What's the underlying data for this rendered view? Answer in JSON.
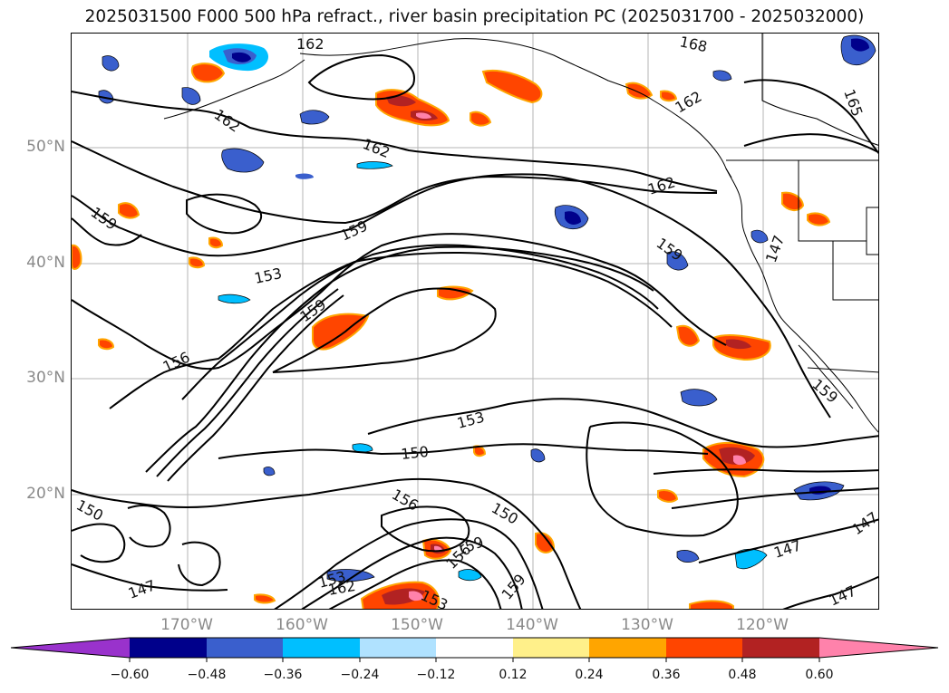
{
  "title": "2025031500 F000 500 hPa refract., river basin precipitation PC (2025031700 - 2025032000)",
  "lat_labels": [
    "50°N",
    "40°N",
    "30°N",
    "20°N"
  ],
  "lon_labels": [
    "170°W",
    "160°W",
    "150°W",
    "140°W",
    "130°W",
    "120°W"
  ],
  "contour_labels": [
    "162",
    "168",
    "165",
    "162",
    "162",
    "162",
    "159",
    "159",
    "159",
    "162",
    "153",
    "159",
    "156",
    "153",
    "150",
    "150",
    "156",
    "150",
    "159",
    "156",
    "153",
    "162",
    "153",
    "159",
    "147",
    "147",
    "159",
    "147",
    "147",
    "147"
  ],
  "colorbar": {
    "tick_labels": [
      "−0.60",
      "−0.48",
      "−0.36",
      "−0.24",
      "−0.12",
      "0.12",
      "0.24",
      "0.36",
      "0.48",
      "0.60"
    ],
    "colors": [
      "#9932cc",
      "#00008b",
      "#3a5fcd",
      "#00bfff",
      "#b0e2ff",
      "#ffffff",
      "#fff08a",
      "#ffa500",
      "#ff4500",
      "#b22222",
      "#ff82ab"
    ]
  }
}
